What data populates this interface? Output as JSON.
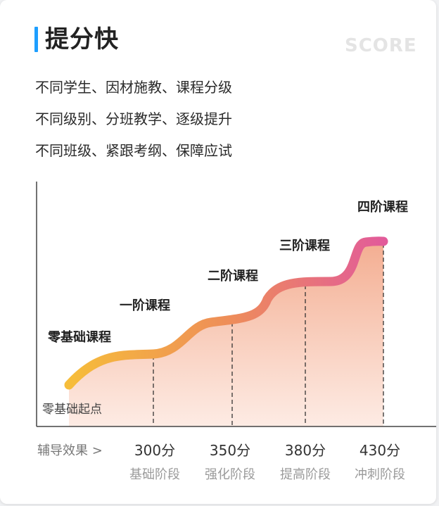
{
  "header": {
    "title": "提分快",
    "watermark": "SCORE"
  },
  "descriptions": [
    "不同学生、因材施教、课程分级",
    "不同级别、分班教学、逐级提升",
    "不同班级、紧跟考纲、保障应试"
  ],
  "chart_data": {
    "type": "line",
    "levels": [
      "零基础课程",
      "一阶课程",
      "二阶课程",
      "三阶课程",
      "四阶课程"
    ],
    "start_label": "零基础起点",
    "x_title": "辅导效果 >",
    "scores": [
      "300分",
      "350分",
      "380分",
      "430分"
    ],
    "stages": [
      "基础阶段",
      "强化阶段",
      "提高阶段",
      "冲刺阶段"
    ],
    "colors": {
      "curve_start": "#f6bd3a",
      "curve_end": "#e25b9a",
      "fill_top": "#f3a98b",
      "fill_bottom": "#fde9e1"
    }
  }
}
